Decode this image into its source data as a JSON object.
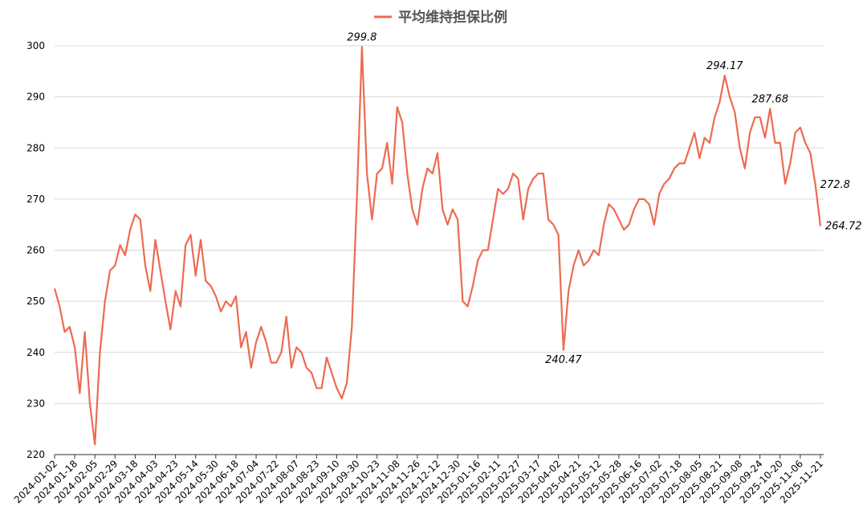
{
  "chart_data": {
    "type": "line",
    "series": [
      {
        "name": "平均维持担保比例",
        "color": "#ec6b52",
        "values": [
          252.5,
          249,
          244,
          245,
          241,
          232,
          244,
          230,
          222,
          240,
          250,
          256,
          257,
          261,
          259,
          264,
          267,
          266,
          257,
          252,
          262,
          256,
          250,
          244.5,
          252,
          249,
          261,
          263,
          255,
          262,
          254,
          253,
          251,
          248,
          250,
          249,
          251,
          241,
          244,
          237,
          242,
          245,
          242,
          238,
          238,
          240,
          247,
          237,
          241,
          240,
          237,
          236,
          233,
          233,
          239,
          236,
          233,
          231,
          234,
          245,
          270,
          299.8,
          275,
          266,
          275,
          276,
          281,
          273,
          288,
          285,
          275,
          268,
          265,
          272,
          276,
          275,
          279,
          268,
          265,
          268,
          266,
          250,
          249,
          253,
          258,
          260,
          260,
          266,
          272,
          271,
          272,
          275,
          274,
          266,
          272,
          274,
          275,
          275,
          266,
          265,
          263,
          240.47,
          252,
          257,
          260,
          257,
          258,
          260,
          259,
          265,
          269,
          268,
          266,
          264,
          265,
          268,
          270,
          270,
          269,
          265,
          271,
          273,
          274,
          276,
          277,
          277,
          280,
          283,
          278,
          282,
          281,
          286,
          289,
          294.17,
          290,
          287,
          280,
          276,
          283,
          286,
          286,
          282,
          287.68,
          281,
          281,
          273,
          277,
          283,
          284,
          281,
          279,
          272.8,
          264.72
        ],
        "value_labels": [
          null,
          null,
          null,
          null,
          null,
          null,
          null,
          null,
          null,
          null,
          null,
          null,
          null,
          null,
          null,
          null,
          null,
          null,
          null,
          null,
          null,
          null,
          null,
          null,
          null,
          null,
          null,
          null,
          null,
          null,
          null,
          null,
          null,
          null,
          null,
          null,
          null,
          null,
          null,
          null,
          null,
          null,
          null,
          null,
          null,
          null,
          null,
          null,
          null,
          null,
          null,
          null,
          null,
          null,
          null,
          null,
          null,
          null,
          null,
          null,
          null,
          "299.8",
          null,
          null,
          null,
          null,
          null,
          null,
          null,
          null,
          null,
          null,
          null,
          null,
          null,
          null,
          null,
          null,
          null,
          null,
          null,
          null,
          null,
          null,
          null,
          null,
          null,
          null,
          null,
          null,
          null,
          null,
          null,
          null,
          null,
          null,
          null,
          null,
          null,
          null,
          null,
          "240.47",
          null,
          null,
          null,
          null,
          null,
          null,
          null,
          null,
          null,
          null,
          null,
          null,
          null,
          null,
          null,
          null,
          null,
          null,
          null,
          null,
          null,
          null,
          null,
          null,
          null,
          null,
          null,
          null,
          null,
          null,
          null,
          "294.17",
          null,
          null,
          null,
          null,
          null,
          null,
          null,
          null,
          "287.68",
          null,
          null,
          null,
          null,
          null,
          null,
          null,
          null,
          "272.8",
          "264.72"
        ]
      }
    ],
    "categories": [
      "2024-01-02",
      null,
      null,
      null,
      "2024-01-18",
      null,
      null,
      null,
      "2024-02-05",
      null,
      null,
      null,
      "2024-02-29",
      null,
      null,
      null,
      "2024-03-18",
      null,
      null,
      null,
      "2024-04-03",
      null,
      null,
      null,
      "2024-04-23",
      null,
      null,
      null,
      "2024-05-14",
      null,
      null,
      null,
      "2024-05-30",
      null,
      null,
      null,
      "2024-06-18",
      null,
      null,
      null,
      "2024-07-04",
      null,
      null,
      null,
      "2024-07-22",
      null,
      null,
      null,
      "2024-08-07",
      null,
      null,
      null,
      "2024-08-23",
      null,
      null,
      null,
      "2024-09-10",
      null,
      null,
      null,
      "2024-09-30",
      null,
      null,
      null,
      "2024-10-23",
      null,
      null,
      null,
      "2024-11-08",
      null,
      null,
      null,
      "2024-11-26",
      null,
      null,
      null,
      "2024-12-12",
      null,
      null,
      null,
      "2024-12-30",
      null,
      null,
      null,
      "2025-01-16",
      null,
      null,
      null,
      "2025-02-11",
      null,
      null,
      null,
      "2025-02-27",
      null,
      null,
      null,
      "2025-03-17",
      null,
      null,
      null,
      "2025-04-02",
      null,
      null,
      null,
      "2025-04-21",
      null,
      null,
      null,
      "2025-05-12",
      null,
      null,
      null,
      "2025-05-28",
      null,
      null,
      null,
      "2025-06-16",
      null,
      null,
      null,
      "2025-07-02",
      null,
      null,
      null,
      "2025-07-18",
      null,
      null,
      null,
      "2025-08-05",
      null,
      null,
      null,
      "2025-08-21",
      null,
      null,
      null,
      "2025-09-08",
      null,
      null,
      null,
      "2025-09-24",
      null,
      null,
      null,
      "2025-10-20",
      null,
      null,
      null,
      "2025-11-06",
      null,
      null,
      null,
      "2025-11-21"
    ],
    "ylim": [
      220,
      300
    ],
    "yticks": [
      220,
      230,
      240,
      250,
      260,
      270,
      280,
      290,
      300
    ],
    "grid": true,
    "legend": "top"
  }
}
